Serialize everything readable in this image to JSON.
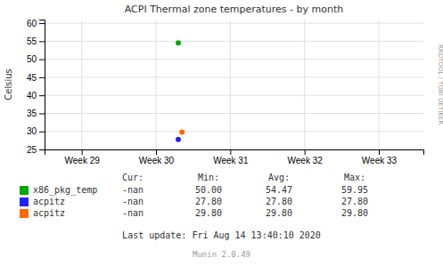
{
  "chart_data": {
    "type": "scatter",
    "title": "ACPI Thermal zone temperatures - by month",
    "ylabel": "Celsius",
    "xlim": [
      -0.5,
      4.6
    ],
    "xticks": [
      {
        "value": 0,
        "label": "Week 29"
      },
      {
        "value": 1,
        "label": "Week 30"
      },
      {
        "value": 2,
        "label": "Week 31"
      },
      {
        "value": 3,
        "label": "Week 32"
      },
      {
        "value": 4,
        "label": "Week 33"
      }
    ],
    "ylim": [
      25,
      61
    ],
    "yticks": [
      25,
      30,
      35,
      40,
      45,
      50,
      55,
      60
    ],
    "grid": true,
    "series": [
      {
        "name": "x86_pkg_temp",
        "color": "#00AA00",
        "x": [
          1.3
        ],
        "values": [
          54.5
        ],
        "cur": "-nan",
        "min": "50.00",
        "avg": "54.47",
        "max": "59.95"
      },
      {
        "name": "acpitz",
        "color": "#2222FF",
        "x": [
          1.3
        ],
        "values": [
          27.8
        ],
        "cur": "-nan",
        "min": "27.80",
        "avg": "27.80",
        "max": "27.80"
      },
      {
        "name": "acpitz",
        "color": "#FF6600",
        "x": [
          1.35
        ],
        "values": [
          29.8
        ],
        "cur": "-nan",
        "min": "29.80",
        "avg": "29.80",
        "max": "29.80"
      }
    ],
    "legend_header": [
      "Cur:",
      "Min:",
      "Avg:",
      "Max:"
    ],
    "annotations": [
      "RRDTOOL / TOBI OETIKER",
      "Last update: Fri Aug 14 13:40:10 2020",
      "Munin 2.0.49"
    ]
  }
}
